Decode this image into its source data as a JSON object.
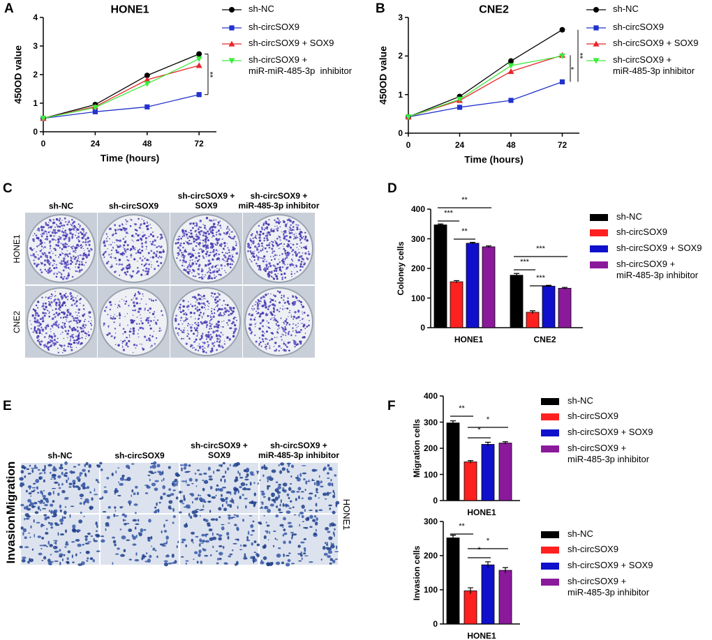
{
  "chart_data": [
    {
      "panel": "A",
      "type": "line",
      "title": "HONE1",
      "x_label": "Time (hours)",
      "y_label": "450OD value",
      "x": [
        0,
        24,
        48,
        72
      ],
      "xlim": [
        0,
        80
      ],
      "xticks": [
        0,
        24,
        48,
        72
      ],
      "ylim": [
        0,
        4
      ],
      "yticks": [
        0,
        1,
        2,
        3,
        4
      ],
      "series": [
        {
          "name": "sh-NC",
          "color": "#000000",
          "marker": "circle",
          "values": [
            0.47,
            0.95,
            1.97,
            2.72
          ]
        },
        {
          "name": "sh-circSOX9",
          "color": "#2233cc",
          "marker": "square",
          "values": [
            0.47,
            0.7,
            0.87,
            1.3
          ]
        },
        {
          "name": "sh-circSOX9 + SOX9",
          "color": "#e8262a",
          "marker": "triangle-up",
          "values": [
            0.47,
            0.88,
            1.82,
            2.32
          ]
        },
        {
          "name": "sh-circSOX9 +\nmiR-miR-485-3p  inhibitor",
          "color": "#3cec3c",
          "marker": "triangle-down",
          "values": [
            0.47,
            0.85,
            1.68,
            2.55
          ]
        }
      ],
      "annotations": [
        "**"
      ]
    },
    {
      "panel": "B",
      "type": "line",
      "title": "CNE2",
      "x_label": "Time (hours)",
      "y_label": "450OD value",
      "x": [
        0,
        24,
        48,
        72
      ],
      "xlim": [
        0,
        80
      ],
      "xticks": [
        0,
        24,
        48,
        72
      ],
      "ylim": [
        0,
        3
      ],
      "yticks": [
        0,
        1,
        2,
        3
      ],
      "series": [
        {
          "name": "sh-NC",
          "color": "#000000",
          "marker": "circle",
          "values": [
            0.42,
            0.95,
            1.87,
            2.68
          ]
        },
        {
          "name": "sh-circSOX9",
          "color": "#2233cc",
          "marker": "square",
          "values": [
            0.42,
            0.67,
            0.85,
            1.33
          ]
        },
        {
          "name": "sh-circSOX9 + SOX9",
          "color": "#e8262a",
          "marker": "triangle-up",
          "values": [
            0.42,
            0.85,
            1.6,
            2.02
          ]
        },
        {
          "name": "sh-circSOX9 +\nmiR-485-3p inhibitor",
          "color": "#3cec3c",
          "marker": "triangle-down",
          "values": [
            0.42,
            0.88,
            1.75,
            2.0
          ]
        }
      ],
      "annotations": [
        "**",
        "*"
      ]
    },
    {
      "panel": "D",
      "type": "bar",
      "y_label": "Coloney cells",
      "categories": [
        "HONE1",
        "CNE2"
      ],
      "ylim": [
        0,
        400
      ],
      "yticks": [
        0,
        100,
        200,
        300,
        400
      ],
      "series": [
        {
          "name": "sh-NC",
          "color": "#000000",
          "values": [
            347,
            177
          ],
          "errors": [
            3,
            6
          ]
        },
        {
          "name": "sh-circSOX9",
          "color": "#ff2020",
          "values": [
            155,
            52
          ],
          "errors": [
            4,
            5
          ]
        },
        {
          "name": "sh-circSOX9 + SOX9",
          "color": "#1010cc",
          "values": [
            285,
            140
          ],
          "errors": [
            3,
            3
          ]
        },
        {
          "name": "sh-circSOX9 +\nmiR-485-3p inhibitor",
          "color": "#8a1a9a",
          "values": [
            273,
            133
          ],
          "errors": [
            3,
            3
          ]
        }
      ],
      "annotations": [
        "**",
        "***",
        "**",
        "***",
        "***",
        "***"
      ]
    },
    {
      "panel": "F",
      "type": "bar",
      "y_label": "Migration cells",
      "categories": [
        "HONE1"
      ],
      "ylim": [
        0,
        400
      ],
      "yticks": [
        0,
        100,
        200,
        300,
        400
      ],
      "series": [
        {
          "name": "sh-NC",
          "color": "#000000",
          "values": [
            297
          ],
          "errors": [
            8
          ]
        },
        {
          "name": "sh-circSOX9",
          "color": "#ff2020",
          "values": [
            148
          ],
          "errors": [
            5
          ]
        },
        {
          "name": "sh-circSOX9 + SOX9",
          "color": "#1010cc",
          "values": [
            215
          ],
          "errors": [
            8
          ]
        },
        {
          "name": "sh-circSOX9 +\nmiR-485-3p inhibitor",
          "color": "#8a1a9a",
          "values": [
            220
          ],
          "errors": [
            5
          ]
        }
      ],
      "annotations": [
        "**",
        "*",
        "*"
      ]
    },
    {
      "type": "bar",
      "y_label": "Invasion cells",
      "categories": [
        "HONE1"
      ],
      "ylim": [
        0,
        300
      ],
      "yticks": [
        0,
        100,
        200,
        300
      ],
      "series": [
        {
          "name": "sh-NC",
          "color": "#000000",
          "values": [
            252
          ],
          "errors": [
            8
          ]
        },
        {
          "name": "sh-circSOX9",
          "color": "#ff2020",
          "values": [
            97
          ],
          "errors": [
            9
          ]
        },
        {
          "name": "sh-circSOX9 + SOX9",
          "color": "#1010cc",
          "values": [
            173
          ],
          "errors": [
            9
          ]
        },
        {
          "name": "sh-circSOX9 +\nmiR-485-3p inhibitor",
          "color": "#8a1a9a",
          "values": [
            157
          ],
          "errors": [
            8
          ]
        }
      ],
      "annotations": [
        "**",
        "*",
        "*"
      ]
    }
  ],
  "images": [
    {
      "panel": "C",
      "columns": [
        "sh-NC",
        "sh-circSOX9",
        "sh-circSOX9 +\nSOX9",
        "sh-circSOX9 +\nmiR-485-3p inhibitor"
      ],
      "rows": [
        "HONE1",
        "CNE2"
      ]
    },
    {
      "panel": "E",
      "columns": [
        "sh-NC",
        "sh-circSOX9",
        "sh-circSOX9 +\nSOX9",
        "sh-circSOX9 +\nmiR-485-3p inhibitor"
      ],
      "rows": [
        "Migration",
        "Invasion"
      ],
      "side_label": "HONE1"
    }
  ]
}
